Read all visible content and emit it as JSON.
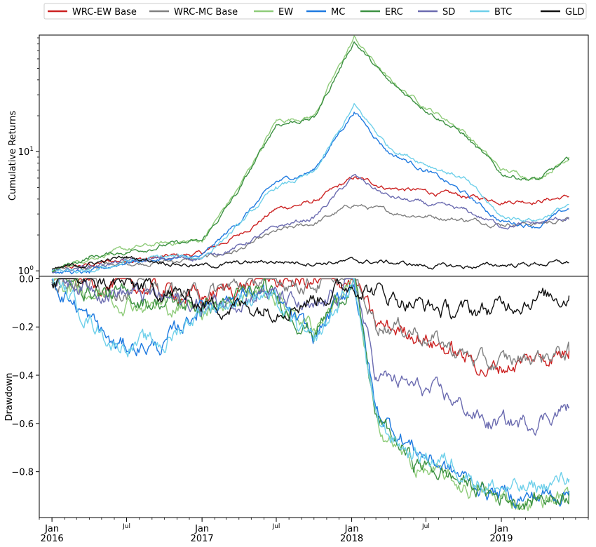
{
  "chart_data": [
    {
      "type": "line",
      "ylabel": "Cumulative Returns",
      "yscale": "log",
      "ylim": [
        0.9,
        95
      ],
      "yticks": [
        {
          "value": 1,
          "base": "10",
          "exp": "0"
        },
        {
          "value": 10,
          "base": "10",
          "exp": "1"
        }
      ],
      "x_range": [
        "2015-12-01",
        "2019-08-01"
      ],
      "grid": false,
      "legend": "top, outside, single row",
      "series": [
        {
          "name": "WRC-EW Base",
          "color": "#cc2222",
          "x": [
            "2016-01-01",
            "2016-04-01",
            "2016-07-01",
            "2016-10-01",
            "2017-01-01",
            "2017-04-01",
            "2017-07-01",
            "2017-10-01",
            "2018-01-07",
            "2018-04-01",
            "2018-07-01",
            "2018-10-01",
            "2019-01-01",
            "2019-04-01",
            "2019-06-15"
          ],
          "values": [
            1.0,
            1.12,
            1.25,
            1.3,
            1.4,
            2.0,
            3.3,
            3.8,
            6.0,
            5.0,
            4.6,
            4.2,
            3.9,
            3.9,
            4.2
          ]
        },
        {
          "name": "WRC-MC Base",
          "color": "#808080",
          "x": [
            "2016-01-01",
            "2016-04-01",
            "2016-07-01",
            "2016-10-01",
            "2017-01-01",
            "2017-04-01",
            "2017-07-01",
            "2017-10-01",
            "2018-01-07",
            "2018-04-01",
            "2018-07-01",
            "2018-10-01",
            "2019-01-01",
            "2019-04-01",
            "2019-06-15"
          ],
          "values": [
            1.0,
            1.08,
            1.15,
            1.2,
            1.25,
            1.5,
            2.1,
            2.5,
            3.6,
            3.1,
            2.9,
            2.7,
            2.5,
            2.5,
            2.7
          ]
        },
        {
          "name": "EW",
          "color": "#8fcc7a",
          "x": [
            "2016-01-01",
            "2016-04-01",
            "2016-07-01",
            "2016-10-01",
            "2017-01-01",
            "2017-04-01",
            "2017-07-01",
            "2017-10-01",
            "2018-01-07",
            "2018-04-01",
            "2018-07-01",
            "2018-10-01",
            "2019-01-01",
            "2019-04-01",
            "2019-06-15"
          ],
          "values": [
            1.0,
            1.3,
            1.5,
            1.7,
            1.8,
            5.0,
            18,
            20,
            90,
            40,
            24,
            15,
            7,
            6,
            9
          ]
        },
        {
          "name": "MC",
          "color": "#1f7ae0",
          "x": [
            "2016-01-01",
            "2016-04-01",
            "2016-07-01",
            "2016-10-01",
            "2017-01-01",
            "2017-04-01",
            "2017-07-01",
            "2017-10-01",
            "2018-01-07",
            "2018-04-01",
            "2018-07-01",
            "2018-10-01",
            "2019-01-01",
            "2019-04-01",
            "2019-06-15"
          ],
          "values": [
            1.0,
            0.95,
            1.2,
            1.25,
            1.3,
            2.6,
            5.5,
            7.0,
            22,
            10,
            7,
            4.5,
            2.6,
            2.4,
            3.3
          ]
        },
        {
          "name": "ERC",
          "color": "#3d9142",
          "x": [
            "2016-01-01",
            "2016-04-01",
            "2016-07-01",
            "2016-10-01",
            "2017-01-01",
            "2017-04-01",
            "2017-07-01",
            "2017-10-01",
            "2018-01-07",
            "2018-04-01",
            "2018-07-01",
            "2018-10-01",
            "2019-01-01",
            "2019-04-01",
            "2019-06-15"
          ],
          "values": [
            1.0,
            1.3,
            1.45,
            1.65,
            1.75,
            4.7,
            17,
            19,
            85,
            38,
            23,
            14,
            6.5,
            5.8,
            8.5
          ]
        },
        {
          "name": "SD",
          "color": "#6b6bb0",
          "x": [
            "2016-01-01",
            "2016-04-01",
            "2016-07-01",
            "2016-10-01",
            "2017-01-01",
            "2017-04-01",
            "2017-07-01",
            "2017-10-01",
            "2018-01-07",
            "2018-04-01",
            "2018-07-01",
            "2018-10-01",
            "2019-01-01",
            "2019-04-01",
            "2019-06-15"
          ],
          "values": [
            1.0,
            1.1,
            1.2,
            1.25,
            1.3,
            1.6,
            2.3,
            2.8,
            6.2,
            4.2,
            3.6,
            3.2,
            2.4,
            2.5,
            2.8
          ]
        },
        {
          "name": "BTC",
          "color": "#6fd0ea",
          "x": [
            "2016-01-01",
            "2016-04-01",
            "2016-07-01",
            "2016-10-01",
            "2017-01-01",
            "2017-04-01",
            "2017-07-01",
            "2017-10-01",
            "2018-01-07",
            "2018-04-01",
            "2018-07-01",
            "2018-10-01",
            "2019-01-01",
            "2019-04-01",
            "2019-06-15"
          ],
          "values": [
            1.0,
            0.95,
            1.2,
            1.3,
            1.3,
            2.4,
            5.0,
            6.5,
            24,
            11,
            8,
            6.0,
            2.8,
            2.7,
            3.6
          ]
        },
        {
          "name": "GLD",
          "color": "#111111",
          "x": [
            "2016-01-01",
            "2016-04-01",
            "2016-07-01",
            "2016-10-01",
            "2017-01-01",
            "2017-04-01",
            "2017-07-01",
            "2017-10-01",
            "2018-01-07",
            "2018-04-01",
            "2018-07-01",
            "2018-10-01",
            "2019-01-01",
            "2019-04-01",
            "2019-06-15"
          ],
          "values": [
            1.0,
            1.15,
            1.3,
            1.2,
            1.1,
            1.15,
            1.2,
            1.18,
            1.2,
            1.18,
            1.1,
            1.08,
            1.12,
            1.15,
            1.17
          ]
        }
      ]
    },
    {
      "type": "line",
      "ylabel": "Drawdown",
      "ylim": [
        -0.99,
        0.01
      ],
      "yticks": [
        {
          "value": 0.0,
          "label": "0.0"
        },
        {
          "value": -0.2,
          "label": "−0.2"
        },
        {
          "value": -0.4,
          "label": "−0.4"
        },
        {
          "value": -0.6,
          "label": "−0.6"
        },
        {
          "value": -0.8,
          "label": "−0.8"
        }
      ],
      "x_range": [
        "2015-12-01",
        "2019-08-01"
      ],
      "xticks": [
        {
          "date": "2016-01-01",
          "label": "Jan",
          "year": "2016",
          "major": true
        },
        {
          "date": "2016-07-01",
          "label": "Jul",
          "major": false
        },
        {
          "date": "2017-01-01",
          "label": "Jan",
          "year": "2017",
          "major": true
        },
        {
          "date": "2017-07-01",
          "label": "Jul",
          "major": false
        },
        {
          "date": "2018-01-01",
          "label": "Jan",
          "year": "2018",
          "major": true
        },
        {
          "date": "2018-07-01",
          "label": "Jul",
          "major": false
        },
        {
          "date": "2019-01-01",
          "label": "Jan",
          "year": "2019",
          "major": true
        }
      ],
      "grid": false,
      "series": [
        {
          "name": "WRC-EW Base",
          "color": "#cc2222",
          "x": [
            "2016-01-01",
            "2016-06-01",
            "2016-10-01",
            "2017-01-01",
            "2017-06-01",
            "2017-10-01",
            "2018-01-07",
            "2018-03-01",
            "2018-06-01",
            "2018-09-01",
            "2018-12-01",
            "2019-03-01",
            "2019-06-15"
          ],
          "values": [
            0.0,
            -0.02,
            -0.05,
            -0.08,
            0.0,
            -0.02,
            0.0,
            -0.2,
            -0.22,
            -0.3,
            -0.38,
            -0.34,
            -0.3
          ]
        },
        {
          "name": "WRC-MC Base",
          "color": "#808080",
          "x": [
            "2016-01-01",
            "2016-06-01",
            "2016-10-01",
            "2017-01-01",
            "2017-06-01",
            "2017-10-01",
            "2018-01-07",
            "2018-03-01",
            "2018-06-01",
            "2018-09-01",
            "2018-12-01",
            "2019-03-01",
            "2019-06-15"
          ],
          "values": [
            0.0,
            -0.03,
            -0.05,
            -0.07,
            0.0,
            -0.02,
            0.0,
            -0.18,
            -0.21,
            -0.29,
            -0.36,
            -0.33,
            -0.3
          ]
        },
        {
          "name": "EW",
          "color": "#8fcc7a",
          "x": [
            "2016-01-01",
            "2016-06-01",
            "2016-10-01",
            "2017-01-01",
            "2017-06-01",
            "2017-10-01",
            "2018-01-07",
            "2018-03-01",
            "2018-06-01",
            "2018-09-01",
            "2018-12-01",
            "2019-03-01",
            "2019-06-15"
          ],
          "values": [
            0.0,
            -0.08,
            -0.12,
            -0.12,
            -0.05,
            -0.2,
            0.0,
            -0.6,
            -0.78,
            -0.84,
            -0.9,
            -0.93,
            -0.9
          ]
        },
        {
          "name": "MC",
          "color": "#1f7ae0",
          "x": [
            "2016-01-01",
            "2016-06-01",
            "2016-10-01",
            "2017-01-01",
            "2017-06-01",
            "2017-10-01",
            "2018-01-07",
            "2018-03-01",
            "2018-06-01",
            "2018-09-01",
            "2018-12-01",
            "2019-03-01",
            "2019-06-15"
          ],
          "values": [
            0.0,
            -0.28,
            -0.28,
            -0.1,
            -0.05,
            -0.25,
            0.0,
            -0.55,
            -0.7,
            -0.8,
            -0.88,
            -0.91,
            -0.88
          ]
        },
        {
          "name": "ERC",
          "color": "#3d9142",
          "x": [
            "2016-01-01",
            "2016-06-01",
            "2016-10-01",
            "2017-01-01",
            "2017-06-01",
            "2017-10-01",
            "2018-01-07",
            "2018-03-01",
            "2018-06-01",
            "2018-09-01",
            "2018-12-01",
            "2019-03-01",
            "2019-06-15"
          ],
          "values": [
            0.0,
            -0.07,
            -0.1,
            -0.12,
            -0.05,
            -0.22,
            0.0,
            -0.58,
            -0.76,
            -0.82,
            -0.89,
            -0.92,
            -0.89
          ]
        },
        {
          "name": "SD",
          "color": "#6b6bb0",
          "x": [
            "2016-01-01",
            "2016-06-01",
            "2016-10-01",
            "2017-01-01",
            "2017-06-01",
            "2017-10-01",
            "2018-01-07",
            "2018-03-01",
            "2018-06-01",
            "2018-09-01",
            "2018-12-01",
            "2019-03-01",
            "2019-06-15"
          ],
          "values": [
            0.0,
            -0.05,
            -0.08,
            -0.12,
            -0.05,
            -0.15,
            0.0,
            -0.4,
            -0.45,
            -0.5,
            -0.6,
            -0.6,
            -0.53
          ]
        },
        {
          "name": "BTC",
          "color": "#6fd0ea",
          "x": [
            "2016-01-01",
            "2016-06-01",
            "2016-10-01",
            "2017-01-01",
            "2017-06-01",
            "2017-10-01",
            "2018-01-07",
            "2018-03-01",
            "2018-06-01",
            "2018-09-01",
            "2018-12-01",
            "2019-03-01",
            "2019-06-15"
          ],
          "values": [
            0.0,
            -0.27,
            -0.27,
            -0.12,
            -0.06,
            -0.28,
            0.0,
            -0.6,
            -0.73,
            -0.76,
            -0.86,
            -0.88,
            -0.83
          ]
        },
        {
          "name": "GLD",
          "color": "#111111",
          "x": [
            "2016-01-01",
            "2016-06-01",
            "2016-10-01",
            "2017-01-01",
            "2017-06-01",
            "2017-10-01",
            "2018-01-07",
            "2018-03-01",
            "2018-06-01",
            "2018-09-01",
            "2018-12-01",
            "2019-03-01",
            "2019-06-15"
          ],
          "values": [
            0.0,
            -0.02,
            -0.05,
            -0.1,
            -0.12,
            -0.08,
            -0.02,
            -0.05,
            -0.1,
            -0.14,
            -0.13,
            -0.08,
            -0.07
          ]
        }
      ]
    }
  ]
}
